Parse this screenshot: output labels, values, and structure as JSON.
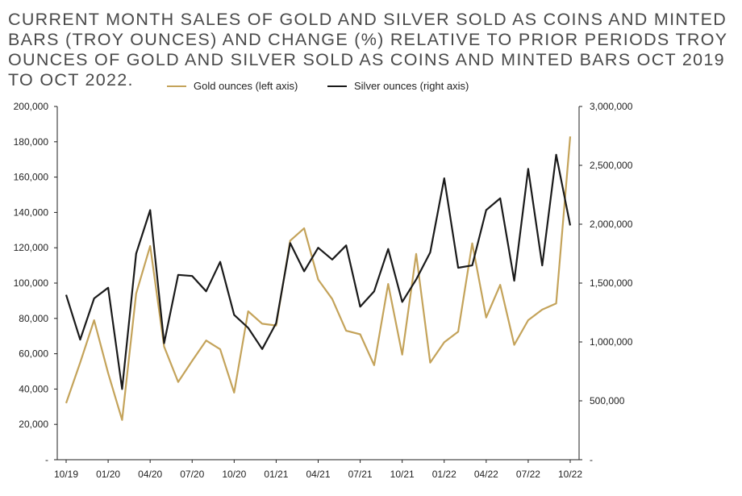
{
  "chart_data": {
    "type": "line",
    "title": "Current month sales of gold and silver sold as coins and minted bars (troy ounces) and change (%) relative to prior periods Troy ounces of gold and silver sold as coins and minted bars Oct 2019 to Oct 2022.",
    "xlabel": "",
    "ylabel_left": "",
    "ylabel_right": "",
    "x_tick_labels": [
      "10/19",
      "01/20",
      "04/20",
      "07/20",
      "10/20",
      "01/21",
      "04/21",
      "07/21",
      "10/21",
      "01/22",
      "04/22",
      "07/22",
      "10/22"
    ],
    "left_axis": {
      "ylim": [
        0,
        200000
      ],
      "tick_labels": [
        "-",
        "20,000",
        "40,000",
        "60,000",
        "80,000",
        "100,000",
        "120,000",
        "140,000",
        "160,000",
        "180,000",
        "200,000"
      ]
    },
    "right_axis": {
      "ylim": [
        0,
        3000000
      ],
      "tick_labels": [
        "-",
        "500,000",
        "1,000,000",
        "1,500,000",
        "2,000,000",
        "2,500,000",
        "3,000,000"
      ]
    },
    "legend_position": "top-center",
    "series": [
      {
        "name": "Gold ounces (left axis)",
        "axis": "left",
        "color": "#c4a35a",
        "values": [
          32000,
          55000,
          79000,
          49000,
          22500,
          94000,
          121000,
          64000,
          44000,
          56000,
          67500,
          62500,
          38000,
          84000,
          77000,
          76000,
          124000,
          131000,
          102000,
          91000,
          73000,
          71000,
          53500,
          99500,
          59500,
          116500,
          55000,
          66500,
          72500,
          122500,
          80500,
          99000,
          65000,
          79000,
          85000,
          88500,
          183000
        ]
      },
      {
        "name": "Silver ounces (right axis)",
        "axis": "right",
        "color": "#1a1a1a",
        "values": [
          1400000,
          1020000,
          1370000,
          1460000,
          600000,
          1750000,
          2120000,
          990000,
          1570000,
          1560000,
          1430000,
          1680000,
          1230000,
          1120000,
          940000,
          1160000,
          1840000,
          1600000,
          1800000,
          1700000,
          1820000,
          1300000,
          1430000,
          1790000,
          1340000,
          1530000,
          1760000,
          2390000,
          1630000,
          1650000,
          2120000,
          2220000,
          1520000,
          2470000,
          1650000,
          2590000,
          1990000
        ]
      }
    ]
  }
}
